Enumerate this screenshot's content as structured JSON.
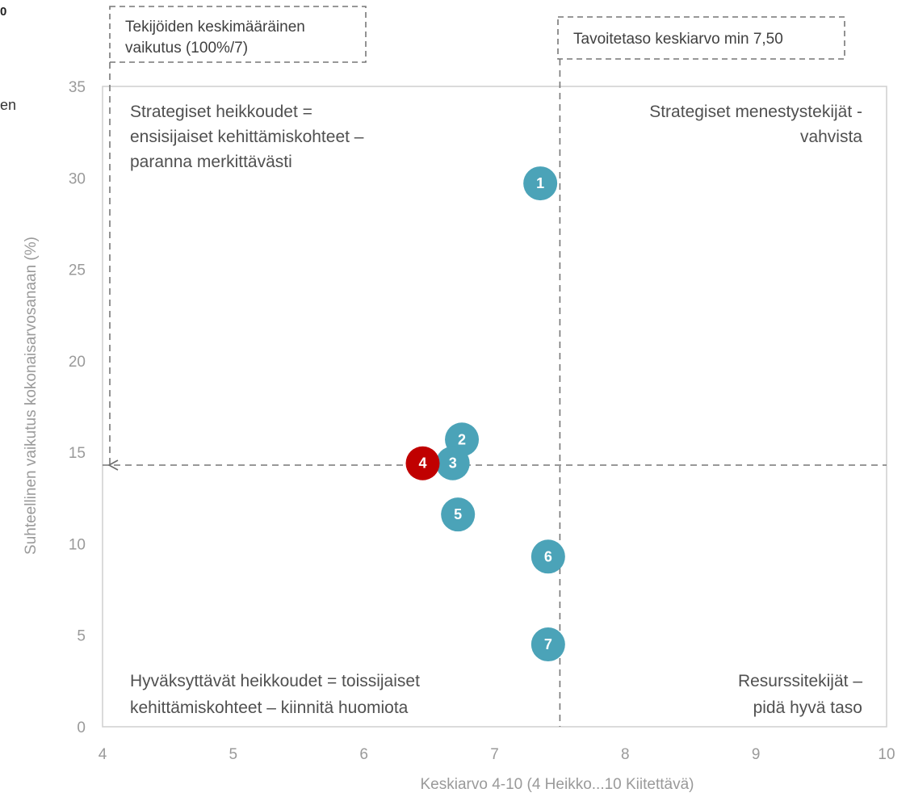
{
  "edge_text": {
    "top_left": "0",
    "side": "en"
  },
  "chart_data": {
    "type": "scatter",
    "xlabel": "Keskiarvo 4-10 (4 Heikko...10 Kiitettävä)",
    "ylabel": "Suhteellinen vaikutus kokonaisarvosanaan (%)",
    "xlim": [
      4,
      10
    ],
    "ylim": [
      0,
      35
    ],
    "xticks": [
      4,
      5,
      6,
      7,
      8,
      9,
      10
    ],
    "yticks": [
      0,
      5,
      10,
      15,
      20,
      25,
      30,
      35
    ],
    "grid": false,
    "reference_lines": {
      "x": 7.5,
      "y": 14.3
    },
    "annotations": {
      "target_box": "Tavoitetaso keskiarvo min 7,50",
      "average_box_line1": "Tekijöiden keskimääräinen",
      "average_box_line2": "vaikutus (100%/7)"
    },
    "quadrants": {
      "top_left": [
        "Strategiset heikkoudet =",
        "ensisijaiset kehittämiskohteet –",
        "paranna merkittävästi"
      ],
      "top_right": [
        "Strategiset menestystekijät -",
        "vahvista"
      ],
      "bottom_left": [
        "Hyväksyttävät heikkoudet = toissijaiset",
        "kehittämiskohteet – kiinnitä huomiota"
      ],
      "bottom_right": [
        "Resurssitekijät –",
        "pidä hyvä taso"
      ]
    },
    "colors": {
      "default_point": "#4ba3b8",
      "highlight_point": "#c00000"
    },
    "points": [
      {
        "label": "1",
        "x": 7.35,
        "y": 29.7,
        "highlight": false
      },
      {
        "label": "2",
        "x": 6.75,
        "y": 15.7,
        "highlight": false
      },
      {
        "label": "3",
        "x": 6.68,
        "y": 14.4,
        "highlight": false
      },
      {
        "label": "4",
        "x": 6.45,
        "y": 14.4,
        "highlight": true
      },
      {
        "label": "5",
        "x": 6.72,
        "y": 11.6,
        "highlight": false
      },
      {
        "label": "6",
        "x": 7.41,
        "y": 9.3,
        "highlight": false
      },
      {
        "label": "7",
        "x": 7.41,
        "y": 4.5,
        "highlight": false
      }
    ]
  }
}
